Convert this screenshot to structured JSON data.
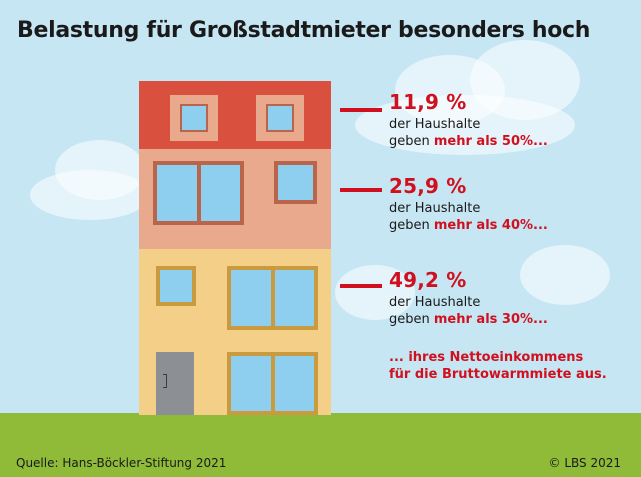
{
  "title": "Belastung für Großstadtmieter besonders hoch",
  "stats": [
    {
      "percent": "11,9 %",
      "line1": "der Haushalte",
      "line2_prefix": "geben ",
      "line2_emphasis": "mehr als 50%..."
    },
    {
      "percent": "25,9 %",
      "line1": "der Haushalte",
      "line2_prefix": "geben ",
      "line2_emphasis": "mehr als 40%..."
    },
    {
      "percent": "49,2 %",
      "line1": "der Haushalte",
      "line2_prefix": "geben ",
      "line2_emphasis": "mehr als 30%..."
    }
  ],
  "footnote": {
    "line1": "... ihres Nettoeinkommens",
    "line2": "für die Bruttowarmmiete aus."
  },
  "source": "Quelle: Hans-Böckler-Stiftung 2021",
  "copyright": "© LBS 2021",
  "colors": {
    "accent_red": "#d0101e",
    "sky": "#c6e6f4",
    "grass": "#8fbb38",
    "roof_floor": "#d9503e",
    "middle_floor": "#e9a98d",
    "ground_floor": "#f3cf88",
    "glass": "#8ecff0"
  }
}
